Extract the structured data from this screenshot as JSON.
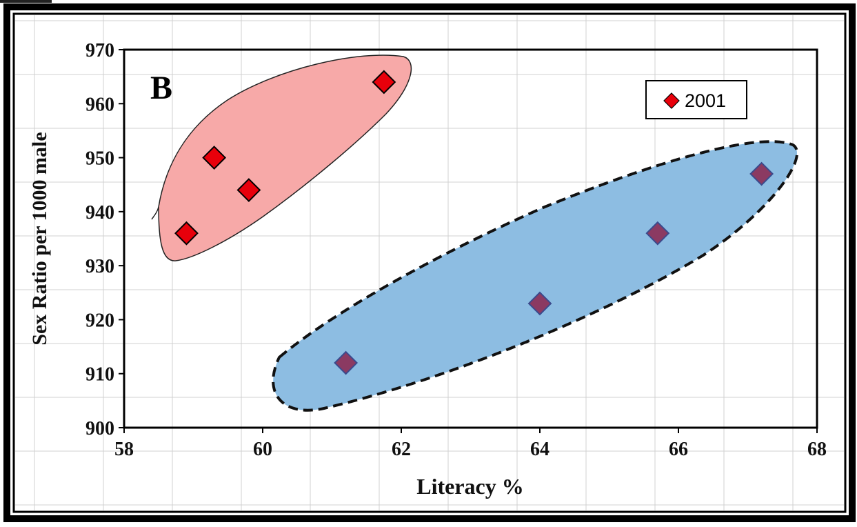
{
  "chart_data": {
    "type": "scatter",
    "panel_label": "B",
    "xlabel": "Literacy %",
    "ylabel": "Sex Ratio per 1000 male",
    "xlim": [
      58,
      68
    ],
    "ylim": [
      900,
      970
    ],
    "x_ticks": [
      58,
      60,
      62,
      64,
      66,
      68
    ],
    "y_ticks": [
      900,
      910,
      920,
      930,
      940,
      950,
      960,
      970
    ],
    "legend_position": "top-right",
    "series": [
      {
        "name": "2001",
        "marker": "diamond",
        "points": [
          {
            "x": 58.9,
            "y": 936
          },
          {
            "x": 59.3,
            "y": 950
          },
          {
            "x": 59.8,
            "y": 944
          },
          {
            "x": 61.75,
            "y": 964
          },
          {
            "x": 61.2,
            "y": 912
          },
          {
            "x": 64.0,
            "y": 923
          },
          {
            "x": 65.7,
            "y": 936
          },
          {
            "x": 67.2,
            "y": 947
          }
        ]
      }
    ],
    "groups": [
      {
        "style": "solid",
        "fill": "#f7a9a8",
        "member_points": [
          0,
          1,
          2,
          3
        ]
      },
      {
        "style": "dashed",
        "fill": "#8dbde2",
        "member_points": [
          4,
          5,
          6,
          7
        ]
      }
    ],
    "colors": {
      "red_marker": "#e8000b",
      "purple_marker": "#8b3a62",
      "red_region": "#f7a9a8",
      "blue_region": "#8dbde2",
      "background_grid": "#d0d0d0"
    }
  }
}
